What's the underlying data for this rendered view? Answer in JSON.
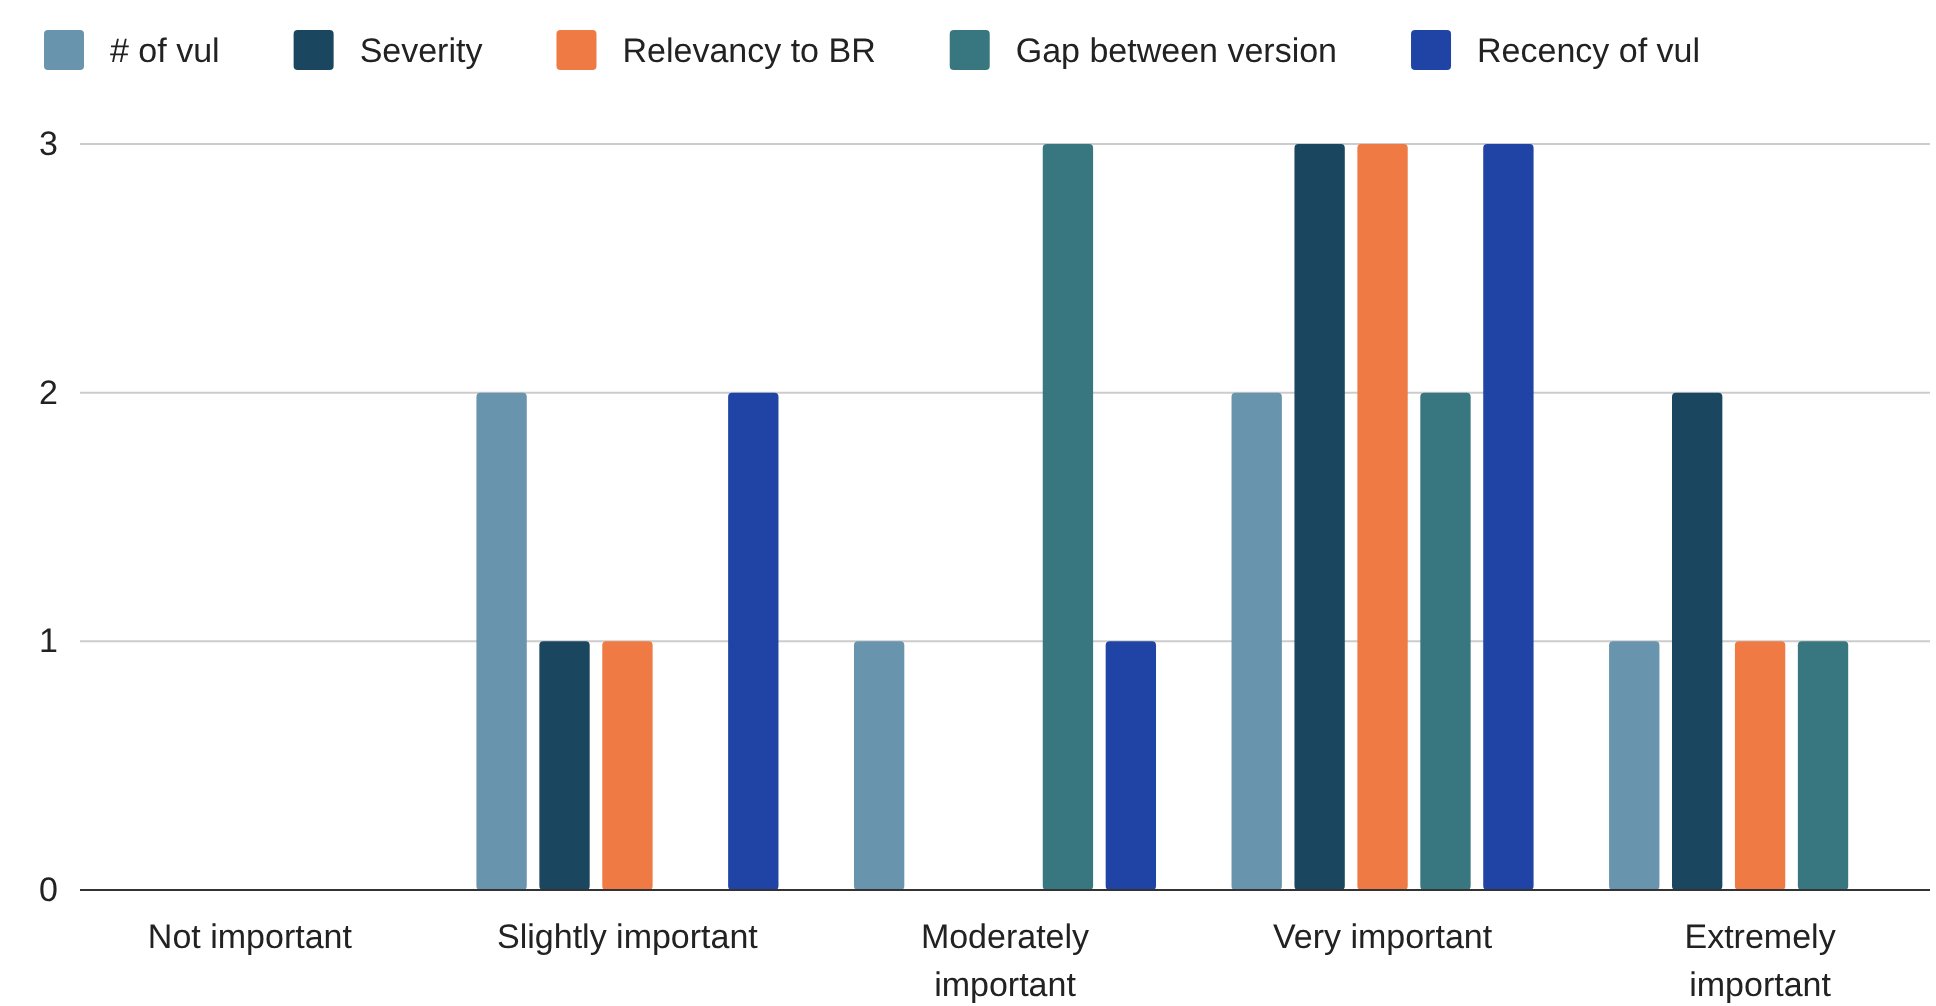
{
  "chart_data": {
    "type": "bar",
    "categories": [
      "Not important",
      "Slightly important",
      "Moderately important",
      "Very important",
      "Extremely important"
    ],
    "series": [
      {
        "name": "# of vul",
        "color": "#6894ad",
        "values": [
          0,
          2,
          1,
          2,
          1
        ]
      },
      {
        "name": "Severity",
        "color": "#1b4660",
        "values": [
          0,
          1,
          0,
          3,
          2
        ]
      },
      {
        "name": "Relevancy to BR",
        "color": "#ef7a43",
        "values": [
          0,
          1,
          0,
          3,
          1
        ]
      },
      {
        "name": "Gap between version",
        "color": "#387780",
        "values": [
          0,
          0,
          3,
          2,
          1
        ]
      },
      {
        "name": "Recency of vul",
        "color": "#1f44a5",
        "values": [
          0,
          2,
          1,
          3,
          0
        ]
      }
    ],
    "ylim": [
      0,
      3
    ],
    "yticks": [
      0,
      1,
      2,
      3
    ],
    "grid": "y",
    "legend": "top"
  }
}
